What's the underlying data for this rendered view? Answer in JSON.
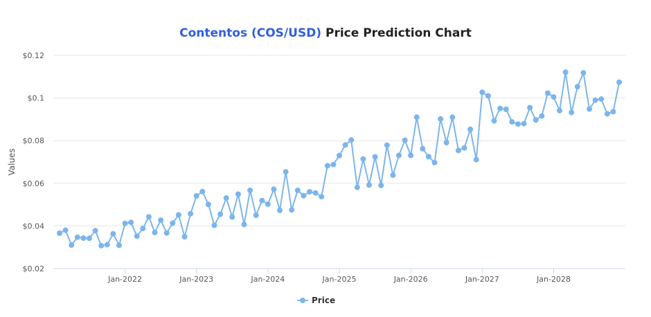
{
  "title": {
    "coin": "Contentos (COS/USD)",
    "rest": "Price Prediction Chart"
  },
  "colors": {
    "series": "#7cb5ec",
    "grid": "#e6e6e6",
    "title_accent": "#2f5ee0"
  },
  "chart_data": {
    "type": "line",
    "title": "Contentos (COS/USD) Price Prediction Chart",
    "xlabel": "",
    "ylabel": "Values",
    "ylim": [
      0.02,
      0.12
    ],
    "yticks": [
      {
        "value": 0.02,
        "label": "$0.02"
      },
      {
        "value": 0.04,
        "label": "$0.04"
      },
      {
        "value": 0.06,
        "label": "$0.06"
      },
      {
        "value": 0.08,
        "label": "$0.08"
      },
      {
        "value": 0.1,
        "label": "$0.1"
      },
      {
        "value": 0.12,
        "label": "$0.12"
      }
    ],
    "x_range": [
      "2021-02",
      "2028-12"
    ],
    "xticks": [
      {
        "date": "2022-01",
        "label": "Jan-2022"
      },
      {
        "date": "2023-01",
        "label": "Jan-2023"
      },
      {
        "date": "2024-01",
        "label": "Jan-2024"
      },
      {
        "date": "2025-01",
        "label": "Jan-2025"
      },
      {
        "date": "2026-01",
        "label": "Jan-2026"
      },
      {
        "date": "2027-01",
        "label": "Jan-2027"
      },
      {
        "date": "2028-01",
        "label": "Jan-2028"
      }
    ],
    "grid": true,
    "legend": "bottom-center",
    "series": [
      {
        "name": "Price",
        "x": [
          "2021-02",
          "2021-03",
          "2021-04",
          "2021-05",
          "2021-06",
          "2021-07",
          "2021-08",
          "2021-09",
          "2021-10",
          "2021-11",
          "2021-12",
          "2022-01",
          "2022-02",
          "2022-03",
          "2022-04",
          "2022-05",
          "2022-06",
          "2022-07",
          "2022-08",
          "2022-09",
          "2022-10",
          "2022-11",
          "2022-12",
          "2023-01",
          "2023-02",
          "2023-03",
          "2023-04",
          "2023-05",
          "2023-06",
          "2023-07",
          "2023-08",
          "2023-09",
          "2023-10",
          "2023-11",
          "2023-12",
          "2024-01",
          "2024-02",
          "2024-03",
          "2024-04",
          "2024-05",
          "2024-06",
          "2024-07",
          "2024-08",
          "2024-09",
          "2024-10",
          "2024-11",
          "2024-12",
          "2025-01",
          "2025-02",
          "2025-03",
          "2025-04",
          "2025-05",
          "2025-06",
          "2025-07",
          "2025-08",
          "2025-09",
          "2025-10",
          "2025-11",
          "2025-12",
          "2026-01",
          "2026-02",
          "2026-03",
          "2026-04",
          "2026-05",
          "2026-06",
          "2026-07",
          "2026-08",
          "2026-09",
          "2026-10",
          "2026-11",
          "2026-12",
          "2027-01",
          "2027-02",
          "2027-03",
          "2027-04",
          "2027-05",
          "2027-06",
          "2027-07",
          "2027-08",
          "2027-09",
          "2027-10",
          "2027-11",
          "2027-12",
          "2028-01",
          "2028-02",
          "2028-03",
          "2028-04",
          "2028-05",
          "2028-06",
          "2028-07",
          "2028-08",
          "2028-09",
          "2028-10",
          "2028-11",
          "2028-12"
        ],
        "values": [
          0.0366,
          0.038,
          0.031,
          0.0347,
          0.0343,
          0.0342,
          0.0378,
          0.0307,
          0.0312,
          0.0363,
          0.0309,
          0.0412,
          0.0417,
          0.0352,
          0.0388,
          0.0443,
          0.0369,
          0.0427,
          0.0367,
          0.0413,
          0.0452,
          0.0349,
          0.0457,
          0.0541,
          0.0561,
          0.0501,
          0.0403,
          0.0455,
          0.0531,
          0.0442,
          0.0549,
          0.0407,
          0.0567,
          0.045,
          0.0519,
          0.0502,
          0.0572,
          0.0473,
          0.0654,
          0.0475,
          0.0567,
          0.0542,
          0.056,
          0.0555,
          0.0537,
          0.0682,
          0.0688,
          0.073,
          0.078,
          0.0803,
          0.0581,
          0.0714,
          0.0592,
          0.0724,
          0.059,
          0.0779,
          0.0638,
          0.0731,
          0.0802,
          0.0731,
          0.091,
          0.0762,
          0.0725,
          0.0697,
          0.0902,
          0.0791,
          0.091,
          0.0754,
          0.0766,
          0.0853,
          0.0711,
          0.1027,
          0.101,
          0.0893,
          0.0951,
          0.0947,
          0.0888,
          0.0878,
          0.088,
          0.0955,
          0.0897,
          0.0916,
          0.1023,
          0.1005,
          0.0941,
          0.1121,
          0.0932,
          0.1053,
          0.1118,
          0.0948,
          0.099,
          0.0995,
          0.0926,
          0.0936,
          0.1074
        ]
      }
    ]
  }
}
